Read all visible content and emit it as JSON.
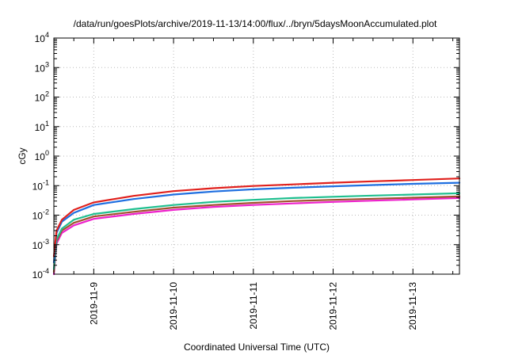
{
  "chart_data": {
    "type": "line",
    "title": "/data/run/goesPlots/archive/2019-11-13/14:00/flux/../bryn/5daysMoonAccumulated.plot",
    "xlabel": "Coordinated Universal Time (UTC)",
    "ylabel": "cGy",
    "xlim": [
      "2019-11-08 12:00",
      "2019-11-13 14:00"
    ],
    "x_ticks": [
      "2019-11-9",
      "2019-11-10",
      "2019-11-11",
      "2019-11-12",
      "2019-11-13"
    ],
    "y_scale": "log",
    "ylim": [
      0.0001,
      10000
    ],
    "y_ticks": [
      {
        "base": "10",
        "exp": "-4"
      },
      {
        "base": "10",
        "exp": "-3"
      },
      {
        "base": "10",
        "exp": "-2"
      },
      {
        "base": "10",
        "exp": "-1"
      },
      {
        "base": "10",
        "exp": "0"
      },
      {
        "base": "10",
        "exp": "1"
      },
      {
        "base": "10",
        "exp": "2"
      },
      {
        "base": "10",
        "exp": "3"
      },
      {
        "base": "10",
        "exp": "4"
      }
    ],
    "grid": true,
    "series": [
      {
        "color": "#e0201c",
        "x": [
          "2019-11-08 12:00",
          "2019-11-08 12:48",
          "2019-11-08 14:24",
          "2019-11-08 18:00",
          "2019-11-09 00:00",
          "2019-11-09 12:00",
          "2019-11-10 00:00",
          "2019-11-10 12:00",
          "2019-11-11 00:00",
          "2019-11-11 12:00",
          "2019-11-12 00:00",
          "2019-11-12 12:00",
          "2019-11-13 00:00",
          "2019-11-13 14:00"
        ],
        "values": [
          0.0004,
          0.003,
          0.007,
          0.015,
          0.027,
          0.045,
          0.065,
          0.082,
          0.097,
          0.11,
          0.125,
          0.14,
          0.155,
          0.175
        ]
      },
      {
        "color": "#1f6fe0",
        "x": [
          "2019-11-08 12:00",
          "2019-11-08 12:48",
          "2019-11-08 14:24",
          "2019-11-08 18:00",
          "2019-11-09 00:00",
          "2019-11-09 12:00",
          "2019-11-10 00:00",
          "2019-11-10 12:00",
          "2019-11-11 00:00",
          "2019-11-11 12:00",
          "2019-11-12 00:00",
          "2019-11-12 12:00",
          "2019-11-13 00:00",
          "2019-11-13 14:00"
        ],
        "values": [
          0.00025,
          0.0025,
          0.006,
          0.012,
          0.022,
          0.035,
          0.05,
          0.063,
          0.075,
          0.085,
          0.095,
          0.105,
          0.115,
          0.125
        ]
      },
      {
        "color": "#1fbf8f",
        "x": [
          "2019-11-08 12:00",
          "2019-11-08 12:48",
          "2019-11-08 14:24",
          "2019-11-08 18:00",
          "2019-11-09 00:00",
          "2019-11-09 12:00",
          "2019-11-10 00:00",
          "2019-11-10 12:00",
          "2019-11-11 00:00",
          "2019-11-11 12:00",
          "2019-11-12 00:00",
          "2019-11-12 12:00",
          "2019-11-13 00:00",
          "2019-11-13 14:00"
        ],
        "values": [
          0.00015,
          0.0015,
          0.0035,
          0.007,
          0.011,
          0.016,
          0.022,
          0.028,
          0.033,
          0.038,
          0.042,
          0.046,
          0.05,
          0.055
        ]
      },
      {
        "color": "#a0522d",
        "x": [
          "2019-11-08 12:00",
          "2019-11-08 12:48",
          "2019-11-08 14:24",
          "2019-11-08 18:00",
          "2019-11-09 00:00",
          "2019-11-09 12:00",
          "2019-11-10 00:00",
          "2019-11-10 12:00",
          "2019-11-11 00:00",
          "2019-11-11 12:00",
          "2019-11-12 00:00",
          "2019-11-12 12:00",
          "2019-11-13 00:00",
          "2019-11-13 14:00"
        ],
        "values": [
          0.00012,
          0.0013,
          0.003,
          0.0055,
          0.009,
          0.013,
          0.018,
          0.022,
          0.026,
          0.03,
          0.033,
          0.036,
          0.039,
          0.043
        ]
      },
      {
        "color": "#ee22cc",
        "x": [
          "2019-11-08 12:00",
          "2019-11-08 12:48",
          "2019-11-08 14:24",
          "2019-11-08 18:00",
          "2019-11-09 00:00",
          "2019-11-09 12:00",
          "2019-11-10 00:00",
          "2019-11-10 12:00",
          "2019-11-11 00:00",
          "2019-11-11 12:00",
          "2019-11-12 00:00",
          "2019-11-12 12:00",
          "2019-11-13 00:00",
          "2019-11-13 14:00"
        ],
        "values": [
          0.0001,
          0.0011,
          0.0025,
          0.0045,
          0.0075,
          0.011,
          0.015,
          0.019,
          0.022,
          0.025,
          0.028,
          0.031,
          0.034,
          0.038
        ]
      }
    ]
  }
}
